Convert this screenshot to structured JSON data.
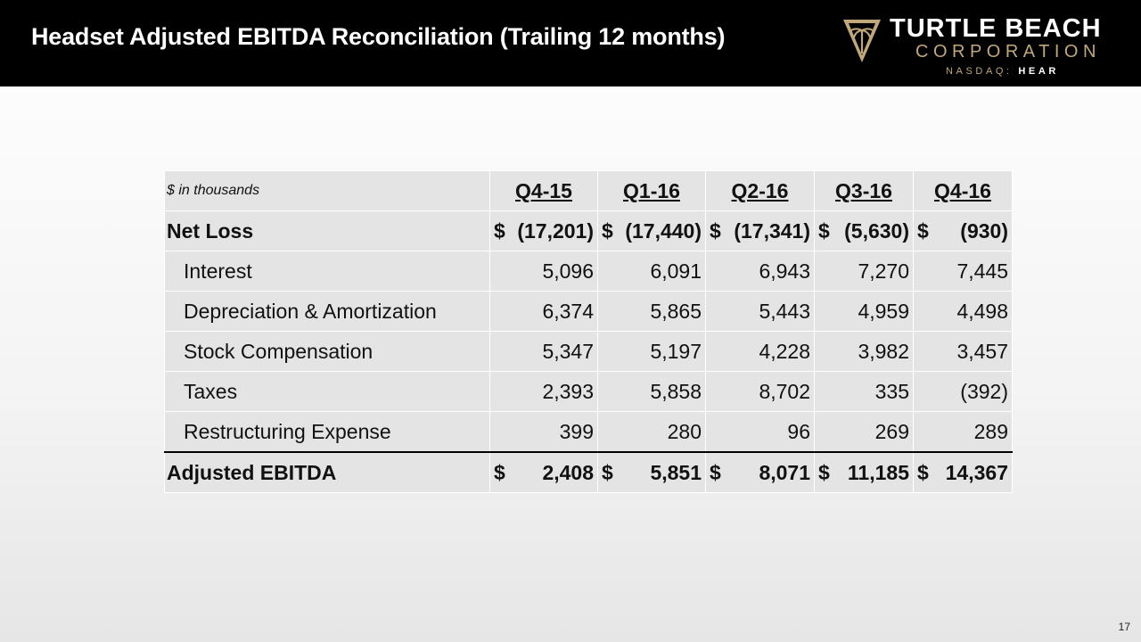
{
  "header": {
    "title": "Headset Adjusted EBITDA Reconciliation (Trailing 12 months)",
    "logo": {
      "line1": "TURTLE BEACH",
      "line2": "CORPORATION",
      "exchange": "NASDAQ:",
      "ticker": "HEAR",
      "gold_color": "#c1a87a"
    }
  },
  "table": {
    "units_label": "$ in thousands",
    "columns": [
      "Q4-15",
      "Q1-16",
      "Q2-16",
      "Q3-16",
      "Q4-16"
    ],
    "net_loss": {
      "label": "Net Loss",
      "cells": [
        {
          "cur": "$",
          "val": "(17,201)"
        },
        {
          "cur": "$",
          "val": "(17,440)"
        },
        {
          "cur": "$",
          "val": "(17,341)"
        },
        {
          "cur": "$",
          "val": "(5,630)"
        },
        {
          "cur": "$",
          "val": "(930)"
        }
      ]
    },
    "items": [
      {
        "label": "Interest",
        "values": [
          "5,096",
          "6,091",
          "6,943",
          "7,270",
          "7,445"
        ]
      },
      {
        "label": "Depreciation & Amortization",
        "values": [
          "6,374",
          "5,865",
          "5,443",
          "4,959",
          "4,498"
        ]
      },
      {
        "label": "Stock Compensation",
        "values": [
          "5,347",
          "5,197",
          "4,228",
          "3,982",
          "3,457"
        ]
      },
      {
        "label": "Taxes",
        "values": [
          "2,393",
          "5,858",
          "8,702",
          "335",
          "(392)"
        ]
      },
      {
        "label": "Restructuring Expense",
        "values": [
          "399",
          "280",
          "96",
          "269",
          "289"
        ]
      }
    ],
    "adjusted_ebitda": {
      "label": "Adjusted EBITDA",
      "cells": [
        {
          "cur": "$",
          "val": "2,408"
        },
        {
          "cur": "$",
          "val": "5,851"
        },
        {
          "cur": "$",
          "val": "8,071"
        },
        {
          "cur": "$",
          "val": "11,185"
        },
        {
          "cur": "$",
          "val": "14,367"
        }
      ]
    }
  },
  "footer": {
    "page_number": "17"
  }
}
